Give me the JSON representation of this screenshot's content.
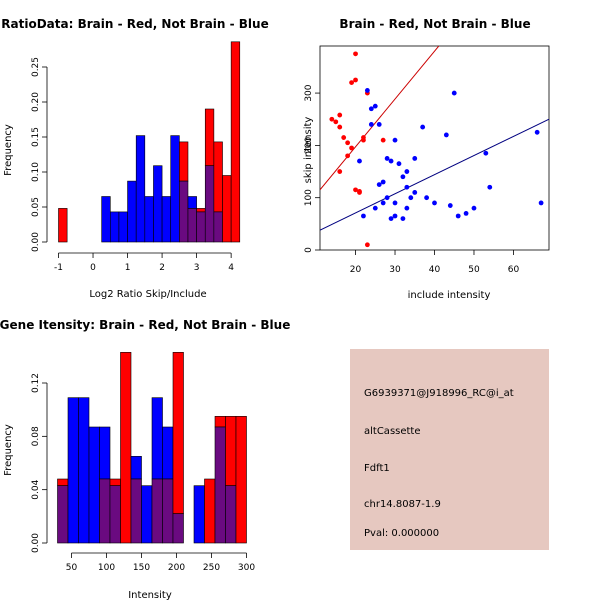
{
  "colors": {
    "red": "#ff0000",
    "blue": "#0000ff",
    "overlap": "#6a0a80",
    "info_bg": "#e6c8c0",
    "pval": "#b00000",
    "reg_red": "#cc0000",
    "reg_blue": "#000080"
  },
  "chart_data": [
    {
      "type": "bar",
      "title": "RatioData: Brain - Red, Not Brain - Blue",
      "xlabel": "Log2 Ratio Skip/Include",
      "ylabel": "Frequency",
      "xlim": [
        -1.0,
        4.3
      ],
      "ylim": [
        0,
        0.28
      ],
      "xticks": [
        "-1",
        "0",
        "1",
        "2",
        "3",
        "4"
      ],
      "yticks": [
        "0.00",
        "0.05",
        "0.10",
        "0.15",
        "0.20",
        "0.25"
      ],
      "bin_width": 0.25,
      "series": [
        {
          "name": "Not Brain",
          "color": "blue",
          "x": [
            0.25,
            0.5,
            0.75,
            1.0,
            1.25,
            1.5,
            1.75,
            2.0,
            2.25,
            2.5,
            2.75,
            3.0,
            3.25,
            3.5
          ],
          "values": [
            0.065,
            0.043,
            0.043,
            0.087,
            0.152,
            0.065,
            0.109,
            0.065,
            0.152,
            0.087,
            0.065,
            0.043,
            0.109,
            0.043
          ]
        },
        {
          "name": "Brain",
          "color": "red",
          "x": [
            -1.0,
            2.5,
            2.75,
            3.0,
            3.25,
            3.5,
            3.75,
            4.0
          ],
          "values": [
            0.048,
            0.143,
            0.048,
            0.048,
            0.19,
            0.143,
            0.095,
            0.286
          ]
        }
      ]
    },
    {
      "type": "scatter",
      "title": "Brain - Red, Not Brain - Blue",
      "xlabel": "include intensity",
      "ylabel": "skip intensity",
      "xlim": [
        11,
        69
      ],
      "ylim": [
        0,
        390
      ],
      "xticks": [
        "20",
        "30",
        "40",
        "50",
        "60"
      ],
      "yticks": [
        "0",
        "100",
        "200",
        "300"
      ],
      "series": [
        {
          "name": "Brain",
          "color": "red",
          "points": [
            [
              14,
              250
            ],
            [
              15,
              245
            ],
            [
              16,
              235
            ],
            [
              16,
              258
            ],
            [
              17,
              215
            ],
            [
              18,
              205
            ],
            [
              18,
              180
            ],
            [
              19,
              195
            ],
            [
              19,
              320
            ],
            [
              20,
              325
            ],
            [
              20,
              115
            ],
            [
              21,
              110
            ],
            [
              21,
              112
            ],
            [
              22,
              215
            ],
            [
              22,
              210
            ],
            [
              23,
              300
            ],
            [
              23,
              10
            ],
            [
              27,
              210
            ],
            [
              20,
              375
            ],
            [
              16,
              150
            ]
          ]
        },
        {
          "name": "Not Brain",
          "color": "blue",
          "points": [
            [
              23,
              305
            ],
            [
              24,
              270
            ],
            [
              24,
              240
            ],
            [
              25,
              275
            ],
            [
              26,
              125
            ],
            [
              26,
              240
            ],
            [
              27,
              90
            ],
            [
              27,
              130
            ],
            [
              28,
              100
            ],
            [
              28,
              175
            ],
            [
              29,
              60
            ],
            [
              29,
              170
            ],
            [
              30,
              65
            ],
            [
              30,
              210
            ],
            [
              31,
              165
            ],
            [
              32,
              140
            ],
            [
              32,
              60
            ],
            [
              33,
              150
            ],
            [
              33,
              80
            ],
            [
              34,
              100
            ],
            [
              35,
              110
            ],
            [
              37,
              235
            ],
            [
              38,
              100
            ],
            [
              40,
              90
            ],
            [
              43,
              220
            ],
            [
              44,
              85
            ],
            [
              45,
              300
            ],
            [
              46,
              65
            ],
            [
              48,
              70
            ],
            [
              50,
              80
            ],
            [
              53,
              185
            ],
            [
              54,
              120
            ],
            [
              66,
              225
            ],
            [
              67,
              90
            ],
            [
              22,
              65
            ],
            [
              25,
              80
            ],
            [
              35,
              175
            ],
            [
              21,
              170
            ],
            [
              30,
              90
            ],
            [
              33,
              120
            ]
          ]
        }
      ],
      "regression": [
        {
          "name": "Brain",
          "color": "red",
          "y_at_xmin": 115,
          "y_at_xmax": 645
        },
        {
          "name": "Not Brain",
          "color": "blue",
          "y_at_xmin": 38,
          "y_at_xmax": 250
        }
      ]
    },
    {
      "type": "bar",
      "title": "Gene Itensity: Brain - Red, Not Brain - Blue",
      "xlabel": "Intensity",
      "ylabel": "Frequency",
      "xlim": [
        25,
        305
      ],
      "ylim": [
        0,
        0.15
      ],
      "xticks": [
        "50",
        "100",
        "150",
        "200",
        "250",
        "300"
      ],
      "yticks": [
        "0.00",
        "0.04",
        "0.08",
        "0.12"
      ],
      "bin_width": 15,
      "series": [
        {
          "name": "Not Brain",
          "color": "blue",
          "x": [
            30,
            45,
            60,
            75,
            90,
            105,
            120,
            135,
            150,
            165,
            180,
            195,
            210,
            225,
            240,
            255,
            270,
            285
          ],
          "values": [
            0.043,
            0.109,
            0.109,
            0.087,
            0.087,
            0.043,
            0.0,
            0.065,
            0.043,
            0.109,
            0.087,
            0.022,
            0.0,
            0.043,
            0.0,
            0.087,
            0.043,
            0.0
          ]
        },
        {
          "name": "Brain",
          "color": "red",
          "x": [
            30,
            45,
            60,
            75,
            90,
            105,
            120,
            135,
            150,
            165,
            180,
            195,
            210,
            225,
            240,
            255,
            270,
            285
          ],
          "values": [
            0.048,
            0.0,
            0.0,
            0.0,
            0.048,
            0.048,
            0.143,
            0.048,
            0.0,
            0.048,
            0.048,
            0.143,
            0.0,
            0.0,
            0.048,
            0.095,
            0.095,
            0.095
          ]
        }
      ]
    }
  ],
  "info": {
    "id": "G6939371@J918996_RC@i_at",
    "event": "altCassette",
    "gene": "Fdft1",
    "location": "chr14.8087-1.9",
    "pval": "Pval: 0.000000"
  }
}
